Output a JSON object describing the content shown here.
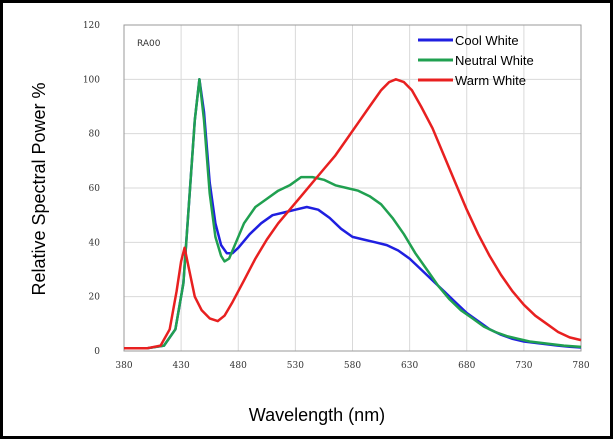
{
  "chart_data": {
    "type": "line",
    "annotation": "RA00",
    "xlabel": "Wavelength (nm)",
    "ylabel": "Relative Spectral Power %",
    "xlim": [
      380,
      780
    ],
    "ylim": [
      0,
      120
    ],
    "xticks": [
      380,
      430,
      480,
      530,
      580,
      630,
      680,
      730,
      780
    ],
    "yticks": [
      0,
      20,
      40,
      60,
      80,
      100,
      120
    ],
    "grid": true,
    "legend_position": "top-right",
    "series": [
      {
        "name": "Cool White",
        "color": "#1f1fe0",
        "points": [
          [
            380,
            1
          ],
          [
            400,
            1
          ],
          [
            415,
            2
          ],
          [
            425,
            8
          ],
          [
            432,
            25
          ],
          [
            437,
            55
          ],
          [
            442,
            85
          ],
          [
            446,
            100
          ],
          [
            450,
            88
          ],
          [
            455,
            62
          ],
          [
            460,
            47
          ],
          [
            465,
            39
          ],
          [
            470,
            36
          ],
          [
            475,
            36
          ],
          [
            480,
            38
          ],
          [
            490,
            43
          ],
          [
            500,
            47
          ],
          [
            510,
            50
          ],
          [
            520,
            51
          ],
          [
            530,
            52
          ],
          [
            540,
            53
          ],
          [
            550,
            52
          ],
          [
            560,
            49
          ],
          [
            570,
            45
          ],
          [
            580,
            42
          ],
          [
            590,
            41
          ],
          [
            600,
            40
          ],
          [
            610,
            39
          ],
          [
            620,
            37
          ],
          [
            630,
            34
          ],
          [
            640,
            30
          ],
          [
            650,
            26
          ],
          [
            660,
            22
          ],
          [
            670,
            18
          ],
          [
            680,
            14
          ],
          [
            690,
            11
          ],
          [
            700,
            8
          ],
          [
            710,
            6
          ],
          [
            720,
            4.5
          ],
          [
            730,
            3.5
          ],
          [
            740,
            3
          ],
          [
            750,
            2.5
          ],
          [
            760,
            2
          ],
          [
            770,
            1.6
          ],
          [
            780,
            1.3
          ]
        ]
      },
      {
        "name": "Neutral White",
        "color": "#20a050",
        "points": [
          [
            380,
            1
          ],
          [
            400,
            1
          ],
          [
            415,
            2
          ],
          [
            425,
            8
          ],
          [
            432,
            25
          ],
          [
            437,
            55
          ],
          [
            442,
            85
          ],
          [
            446,
            100
          ],
          [
            450,
            85
          ],
          [
            455,
            58
          ],
          [
            460,
            42
          ],
          [
            465,
            35
          ],
          [
            468,
            33
          ],
          [
            472,
            34
          ],
          [
            478,
            40
          ],
          [
            485,
            47
          ],
          [
            495,
            53
          ],
          [
            505,
            56
          ],
          [
            515,
            59
          ],
          [
            525,
            61
          ],
          [
            535,
            64
          ],
          [
            545,
            64
          ],
          [
            555,
            63
          ],
          [
            565,
            61
          ],
          [
            575,
            60
          ],
          [
            585,
            59
          ],
          [
            595,
            57
          ],
          [
            605,
            54
          ],
          [
            615,
            49
          ],
          [
            625,
            43
          ],
          [
            635,
            36
          ],
          [
            645,
            30
          ],
          [
            655,
            24
          ],
          [
            665,
            19
          ],
          [
            675,
            15
          ],
          [
            685,
            12
          ],
          [
            695,
            9
          ],
          [
            705,
            7
          ],
          [
            715,
            5.5
          ],
          [
            725,
            4.5
          ],
          [
            735,
            3.5
          ],
          [
            745,
            3
          ],
          [
            755,
            2.5
          ],
          [
            765,
            2
          ],
          [
            780,
            1.5
          ]
        ]
      },
      {
        "name": "Warm White",
        "color": "#e82020",
        "points": [
          [
            380,
            1
          ],
          [
            400,
            1
          ],
          [
            412,
            2
          ],
          [
            420,
            8
          ],
          [
            426,
            22
          ],
          [
            430,
            33
          ],
          [
            433,
            38
          ],
          [
            437,
            30
          ],
          [
            442,
            20
          ],
          [
            448,
            15
          ],
          [
            455,
            12
          ],
          [
            462,
            11
          ],
          [
            468,
            13
          ],
          [
            475,
            18
          ],
          [
            485,
            26
          ],
          [
            495,
            34
          ],
          [
            505,
            41
          ],
          [
            515,
            47
          ],
          [
            525,
            52
          ],
          [
            535,
            57
          ],
          [
            545,
            62
          ],
          [
            555,
            67
          ],
          [
            565,
            72
          ],
          [
            575,
            78
          ],
          [
            585,
            84
          ],
          [
            595,
            90
          ],
          [
            605,
            96
          ],
          [
            612,
            99
          ],
          [
            618,
            100
          ],
          [
            625,
            99
          ],
          [
            632,
            96
          ],
          [
            640,
            90
          ],
          [
            650,
            82
          ],
          [
            660,
            72
          ],
          [
            670,
            62
          ],
          [
            680,
            52
          ],
          [
            690,
            43
          ],
          [
            700,
            35
          ],
          [
            710,
            28
          ],
          [
            720,
            22
          ],
          [
            730,
            17
          ],
          [
            740,
            13
          ],
          [
            750,
            10
          ],
          [
            760,
            7
          ],
          [
            770,
            5
          ],
          [
            780,
            4
          ]
        ]
      }
    ]
  }
}
